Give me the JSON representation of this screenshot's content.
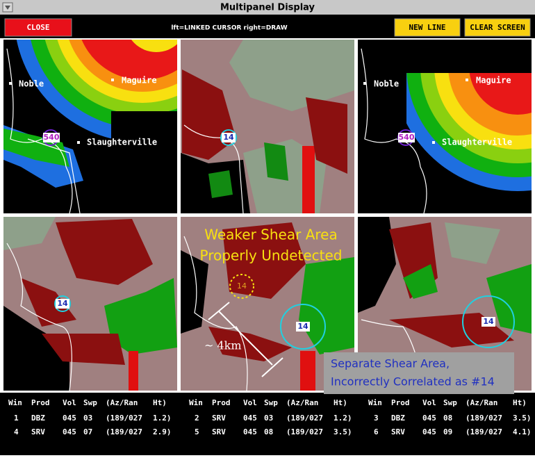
{
  "window": {
    "title": "Multipanel Display"
  },
  "toolbar": {
    "close": "CLOSE",
    "hint": "lft=LINKED CURSOR  right=DRAW",
    "new_line": "NEW LINE",
    "clear_screen": "CLEAR SCREEN"
  },
  "panels": [
    {
      "labels": [
        "Noble",
        "Maguire",
        "Slaughterville"
      ],
      "marker": "540"
    },
    {
      "marker": "14"
    },
    {
      "labels": [
        "Noble",
        "Maguire",
        "Slaughterville"
      ],
      "marker": "540"
    },
    {
      "marker": "14"
    },
    {
      "marker": "14",
      "faint_marker": "14",
      "annotation": [
        "Weaker Shear Area",
        "Properly Undetected"
      ],
      "distance": "~ 4km"
    },
    {
      "marker": "14"
    }
  ],
  "callout": [
    "Separate Shear Area,",
    "Incorrectly Correlated as #14"
  ],
  "table": {
    "groups": [
      {
        "header": [
          "Win",
          "Prod",
          "Vol",
          "Swp",
          "(Az/Ran",
          "Ht)"
        ],
        "rows": [
          [
            "1",
            "DBZ",
            "045",
            "03",
            "(189/027",
            "1.2)"
          ],
          [
            "4",
            "SRV",
            "045",
            "07",
            "(189/027",
            "2.9)"
          ]
        ]
      },
      {
        "header": [
          "Win",
          "Prod",
          "Vol",
          "Swp",
          "(Az/Ran",
          "Ht)"
        ],
        "rows": [
          [
            "2",
            "SRV",
            "045",
            "03",
            "(189/027",
            "1.2)"
          ],
          [
            "5",
            "SRV",
            "045",
            "08",
            "(189/027",
            "3.5)"
          ]
        ]
      },
      {
        "header": [
          "Win",
          "Prod",
          "Vol",
          "Swp",
          "(Az/Ran",
          "Ht)"
        ],
        "rows": [
          [
            "3",
            "DBZ",
            "045",
            "08",
            "(189/027",
            "3.5)"
          ],
          [
            "6",
            "SRV",
            "045",
            "09",
            "(189/027",
            "4.1)"
          ]
        ]
      }
    ]
  }
}
